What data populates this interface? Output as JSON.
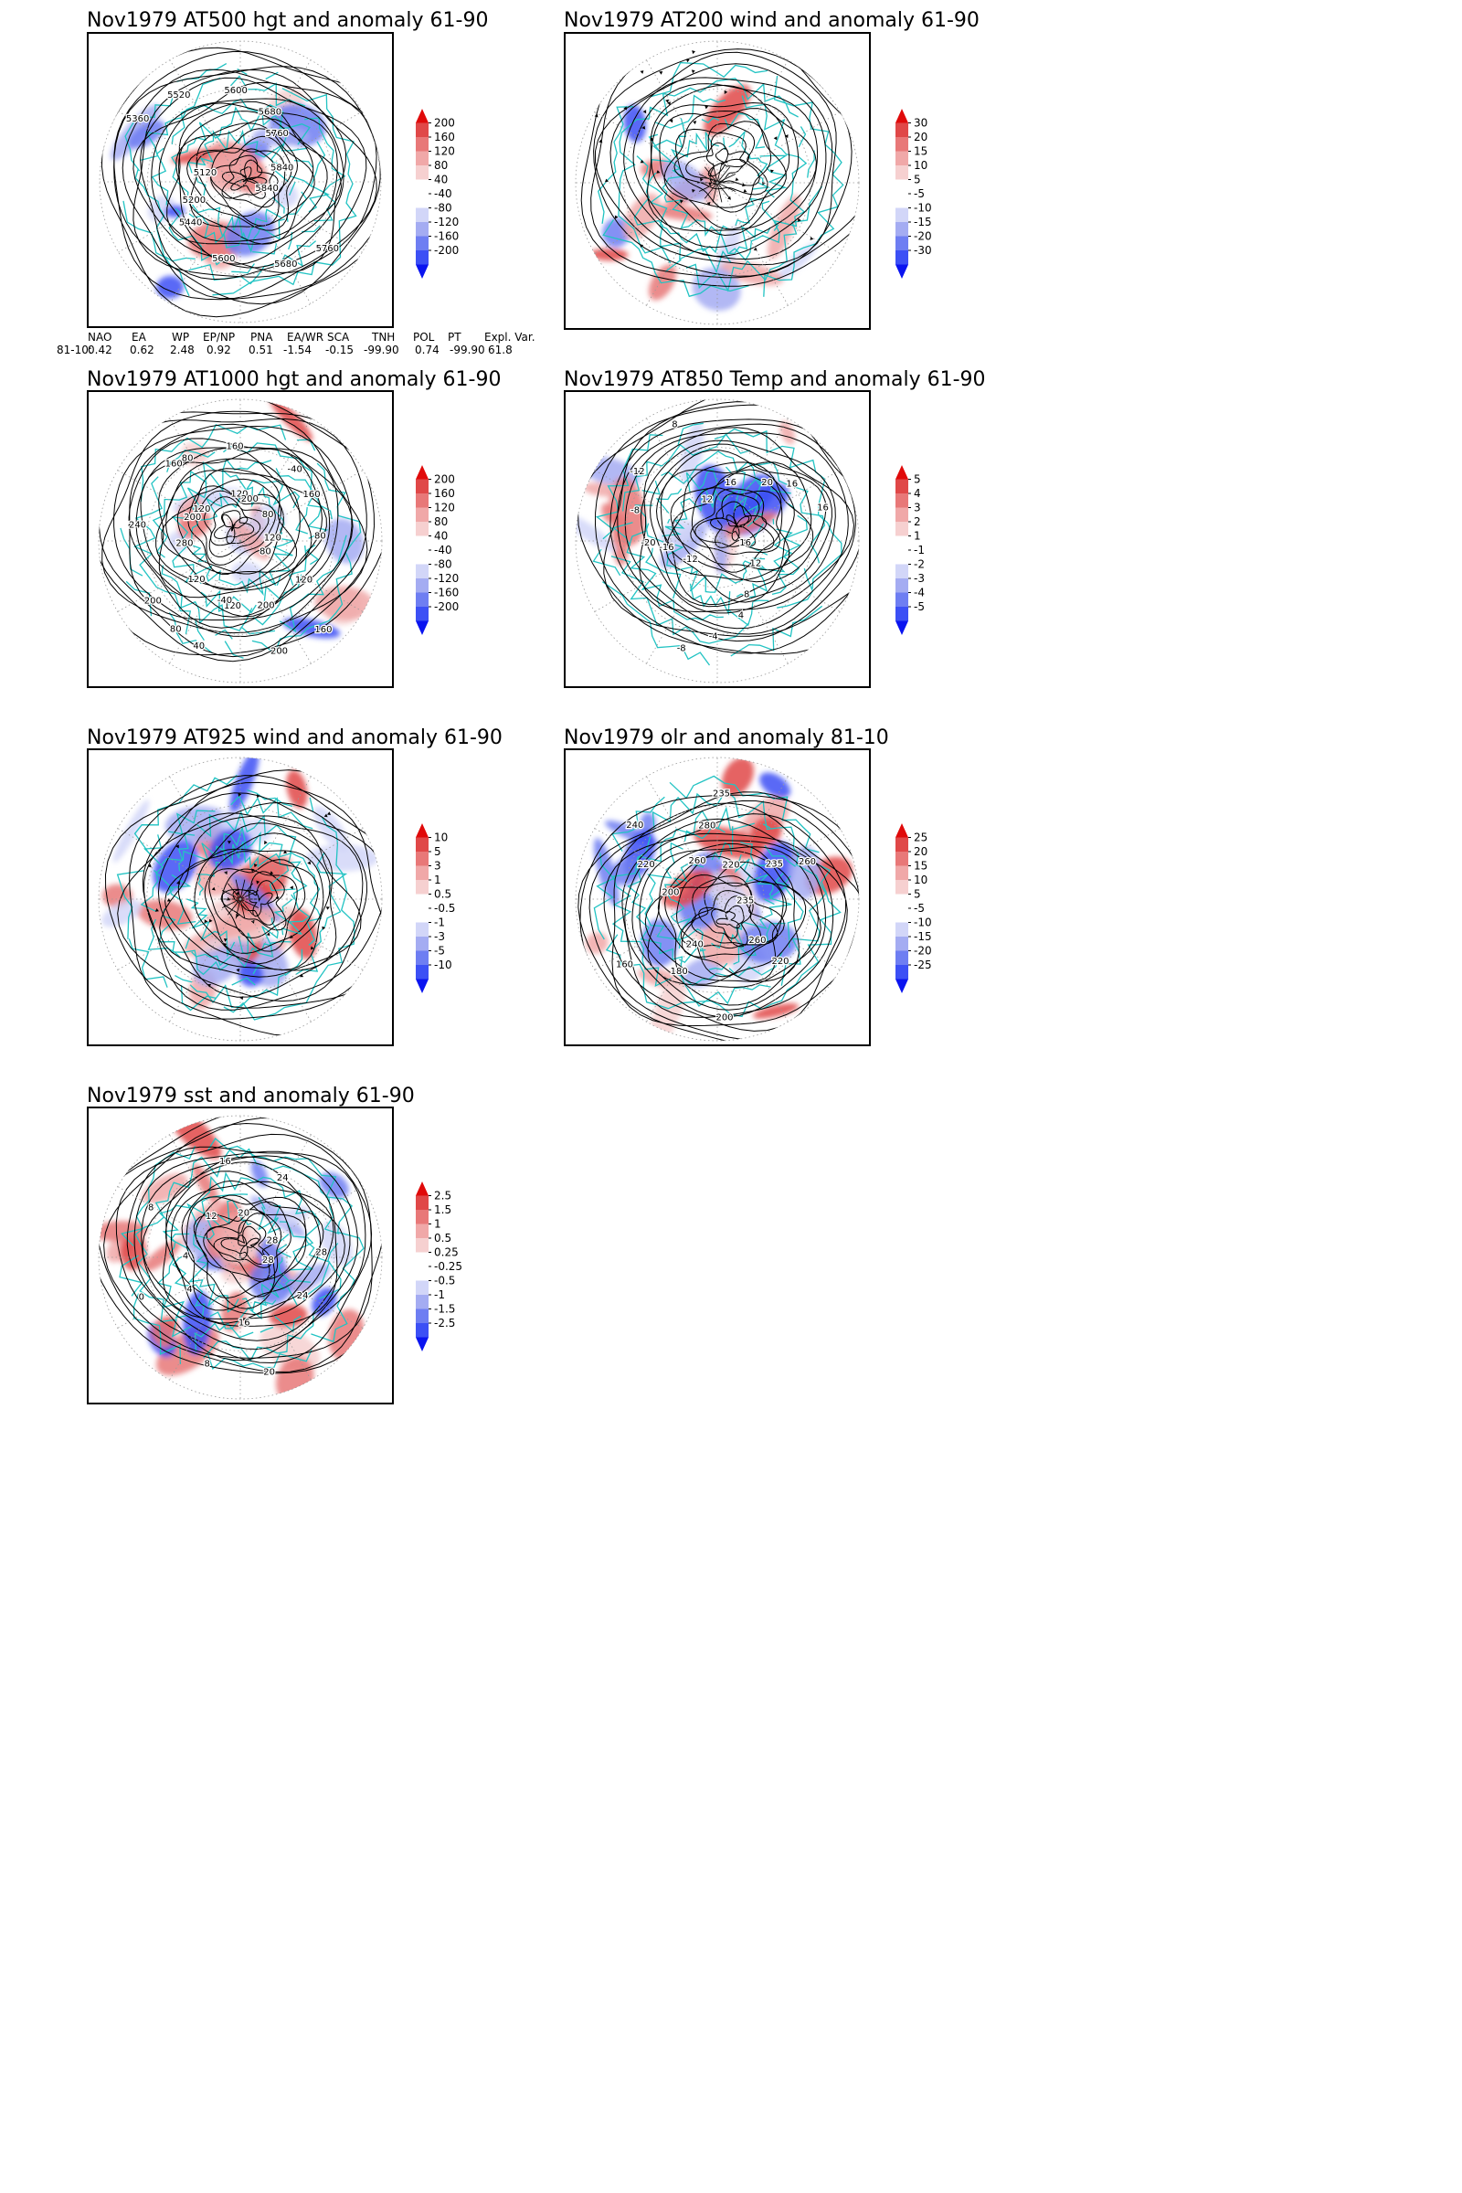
{
  "colors": {
    "frame": "#000000",
    "coast": "#22c3c3",
    "contour": "#000000",
    "grid": "#9a9a9a",
    "scale": [
      "#0a14f0",
      "#3c50f5",
      "#6e7ef2",
      "#a4acf2",
      "#d2d6f8",
      "#ffffff",
      "#ffffff",
      "#f6d0d0",
      "#f0a8a8",
      "#e87878",
      "#e04848",
      "#e00a0a"
    ]
  },
  "panels": [
    {
      "id": "z500",
      "title": "Nov1979 AT500 hgt and anomaly 61-90",
      "style": "contours",
      "contour_labels": [
        "5840",
        "5760",
        "5680",
        "5600",
        "5440",
        "5200",
        "5120",
        "5360",
        "5520",
        "5600",
        "5680",
        "5760",
        "5840"
      ],
      "colorbar": [
        "200",
        "160",
        "120",
        "80",
        "40",
        "-40",
        "-80",
        "-120",
        "-160",
        "-200"
      ]
    },
    {
      "id": "u200",
      "title": "Nov1979 AT200 wind and anomaly 61-90",
      "style": "streamlines",
      "contour_labels": [],
      "colorbar": [
        "30",
        "20",
        "15",
        "10",
        "5",
        "-5",
        "-10",
        "-15",
        "-20",
        "-30"
      ]
    },
    {
      "id": "z1000",
      "title": "Nov1979 AT1000 hgt and anomaly 61-90",
      "style": "contours",
      "contour_labels": [
        "80",
        "120",
        "160",
        "200",
        "200",
        "120",
        "40",
        "-40",
        "80",
        "120",
        "200",
        "280",
        "240",
        "200",
        "160",
        "120",
        "80",
        "120",
        "160",
        "200",
        "-40",
        "80",
        "160",
        "120",
        "80"
      ],
      "colorbar": [
        "200",
        "160",
        "120",
        "80",
        "40",
        "-40",
        "-80",
        "-120",
        "-160",
        "-200"
      ]
    },
    {
      "id": "t850",
      "title": "Nov1979 AT850 Temp and anomaly 61-90",
      "style": "contours",
      "contour_labels": [
        "16",
        "12",
        "8",
        "4",
        "-4",
        "-8",
        "-12",
        "-16",
        "-20",
        "-8",
        "-12",
        "8",
        "12",
        "16",
        "20",
        "16",
        "16"
      ],
      "colorbar": [
        "5",
        "4",
        "3",
        "2",
        "1",
        "-1",
        "-2",
        "-3",
        "-4",
        "-5"
      ]
    },
    {
      "id": "u925",
      "title": "Nov1979 AT925 wind and anomaly 61-90",
      "style": "streamlines",
      "contour_labels": [],
      "colorbar": [
        "10",
        "5",
        "3",
        "1",
        "0.5",
        "-0.5",
        "-1",
        "-3",
        "-5",
        "-10"
      ]
    },
    {
      "id": "olr",
      "title": "Nov1979 olr and anomaly 81-10",
      "style": "contours",
      "contour_labels": [
        "235",
        "260",
        "220",
        "200",
        "240",
        "180",
        "160",
        "200",
        "220",
        "240",
        "260",
        "280",
        "235",
        "220",
        "235",
        "260"
      ],
      "colorbar": [
        "25",
        "20",
        "15",
        "10",
        "5",
        "-5",
        "-10",
        "-15",
        "-20",
        "-25"
      ]
    },
    {
      "id": "sst",
      "title": "Nov1979 sst and anomaly 61-90",
      "style": "contours",
      "contour_labels": [
        "28",
        "24",
        "20",
        "16",
        "8",
        "4",
        "0",
        "4",
        "8",
        "12",
        "16",
        "20",
        "24",
        "28",
        "28"
      ],
      "colorbar": [
        "2.5",
        "1.5",
        "1",
        "0.5",
        "0.25",
        "-0.25",
        "-0.5",
        "-1",
        "-1.5",
        "-2.5"
      ]
    }
  ],
  "teleconnection_table": {
    "headers": [
      "NAO",
      "EA",
      "WP",
      "EP/NP",
      "PNA",
      "EA/WR",
      "SCA",
      "TNH",
      "POL",
      "PT",
      "Expl. Var."
    ],
    "row_label": "81-10:",
    "values": [
      "0.42",
      "0.62",
      "2.48",
      "0.92",
      "0.51",
      "-1.54",
      "-0.15",
      "-99.90",
      "0.74",
      "-99.90",
      "61.8"
    ]
  }
}
